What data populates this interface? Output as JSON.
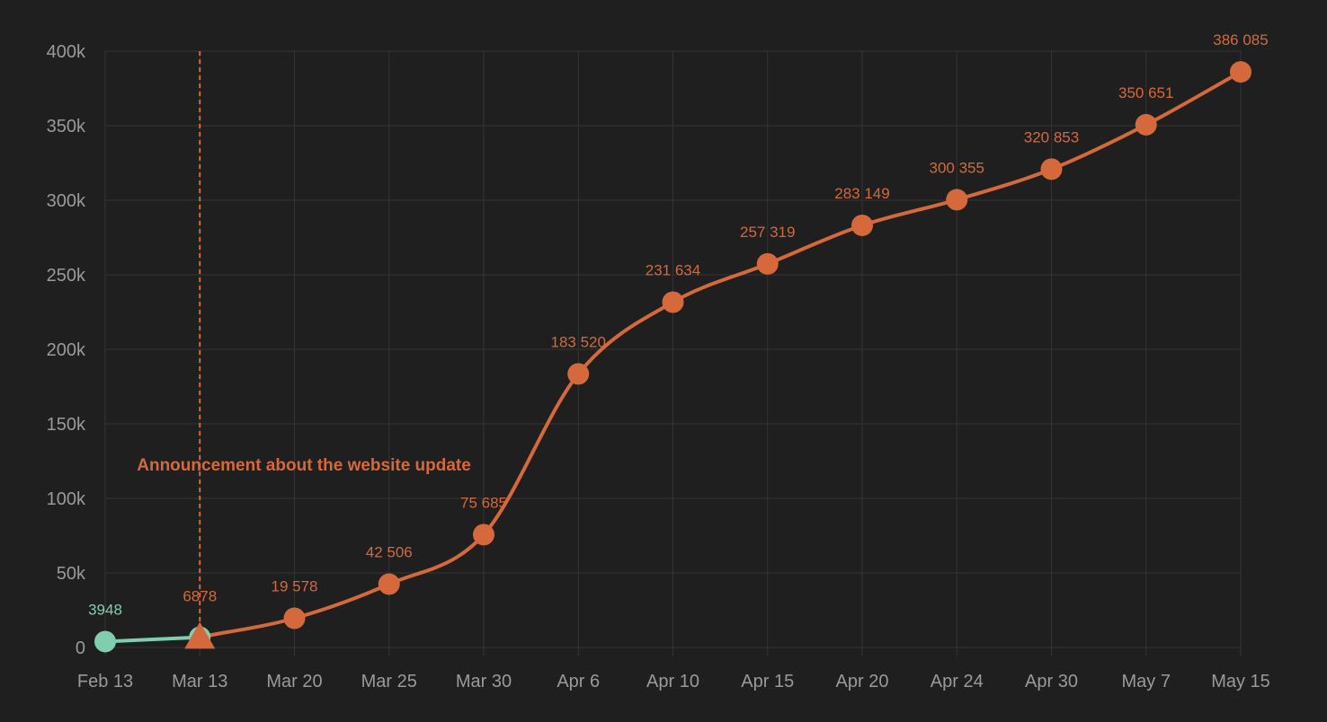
{
  "chart_data": {
    "type": "line",
    "title": "",
    "xlabel": "",
    "ylabel": "",
    "grid": true,
    "categories": [
      "Feb 13",
      "Mar 13",
      "Mar 20",
      "Mar 25",
      "Mar 30",
      "Apr 6",
      "Apr 10",
      "Apr 15",
      "Apr 20",
      "Apr 24",
      "Apr 30",
      "May 7",
      "May 15"
    ],
    "ylim": [
      0,
      400000
    ],
    "y_ticks": [
      {
        "value": 0,
        "label": "0"
      },
      {
        "value": 50000,
        "label": "50k"
      },
      {
        "value": 100000,
        "label": "100k"
      },
      {
        "value": 150000,
        "label": "150k"
      },
      {
        "value": 200000,
        "label": "200k"
      },
      {
        "value": 250000,
        "label": "250k"
      },
      {
        "value": 300000,
        "label": "300k"
      },
      {
        "value": 350000,
        "label": "350k"
      },
      {
        "value": 400000,
        "label": "400k"
      }
    ],
    "series": [
      {
        "color": "#7fcfae",
        "marker": "circle",
        "points": [
          {
            "category": "Feb 13",
            "value": 3948,
            "label": "3948"
          },
          {
            "category": "Mar 13",
            "value": 6878,
            "label": ""
          }
        ]
      },
      {
        "color": "#d5693c",
        "marker": "circle",
        "points": [
          {
            "category": "Mar 13",
            "value": 6878,
            "label": "6878",
            "marker": "triangle"
          },
          {
            "category": "Mar 20",
            "value": 19578,
            "label": "19 578"
          },
          {
            "category": "Mar 25",
            "value": 42506,
            "label": "42 506"
          },
          {
            "category": "Mar 30",
            "value": 75685,
            "label": "75 685"
          },
          {
            "category": "Apr 6",
            "value": 183520,
            "label": "183 520"
          },
          {
            "category": "Apr 10",
            "value": 231634,
            "label": "231 634"
          },
          {
            "category": "Apr 15",
            "value": 257319,
            "label": "257 319"
          },
          {
            "category": "Apr 20",
            "value": 283149,
            "label": "283 149"
          },
          {
            "category": "Apr 24",
            "value": 300355,
            "label": "300 355"
          },
          {
            "category": "Apr 30",
            "value": 320853,
            "label": "320 853"
          },
          {
            "category": "May 7",
            "value": 350651,
            "label": "350 651"
          },
          {
            "category": "May 15",
            "value": 386085,
            "label": "386 085"
          }
        ]
      }
    ],
    "annotations": [
      {
        "type": "vertical-line",
        "category": "Mar 13",
        "style": "dashed",
        "color": "#d5693c",
        "text": "Announcement about the website update",
        "text_y_value": 123000
      }
    ]
  }
}
